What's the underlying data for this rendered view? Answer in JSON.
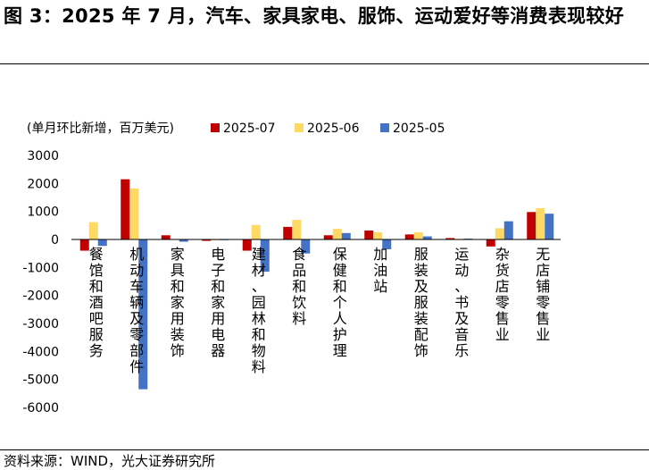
{
  "figure_title": "图 3：2025 年 7 月，汽车、家具家电、服饰、运动爱好等消费表现较好",
  "source": "资料来源：WIND，光大证券研究所",
  "colors": {
    "2025-07": "#c00000",
    "2025-06": "#ffd966",
    "2025-05": "#4472c4"
  },
  "chart_data": {
    "type": "bar",
    "unit_label": "(单月环比新增，百万美元)",
    "categories": [
      "餐馆和酒吧服务",
      "机动车辆及零部件",
      "家具和家用装饰",
      "电子和家用电器",
      "建材、园林和物料",
      "食品和饮料",
      "保健和个人护理",
      "加油站",
      "服装及服装配饰",
      "运动、书及音乐",
      "杂货店零售业",
      "无店铺零售业"
    ],
    "series": [
      {
        "name": "2025-07",
        "values": [
          -400,
          2150,
          150,
          -50,
          -400,
          450,
          150,
          320,
          180,
          50,
          -250,
          980
        ]
      },
      {
        "name": "2025-06",
        "values": [
          620,
          1820,
          20,
          -30,
          520,
          700,
          380,
          260,
          260,
          -20,
          400,
          1120
        ]
      },
      {
        "name": "2025-05",
        "values": [
          -230,
          -5350,
          -80,
          -20,
          -1150,
          -500,
          230,
          -350,
          110,
          30,
          650,
          920
        ]
      }
    ],
    "ylim": [
      -6000,
      3000
    ],
    "yticks": [
      3000,
      2000,
      1000,
      0,
      -1000,
      -2000,
      -3000,
      -4000,
      -5000,
      -6000
    ],
    "legend_position": "top",
    "grid": false
  }
}
